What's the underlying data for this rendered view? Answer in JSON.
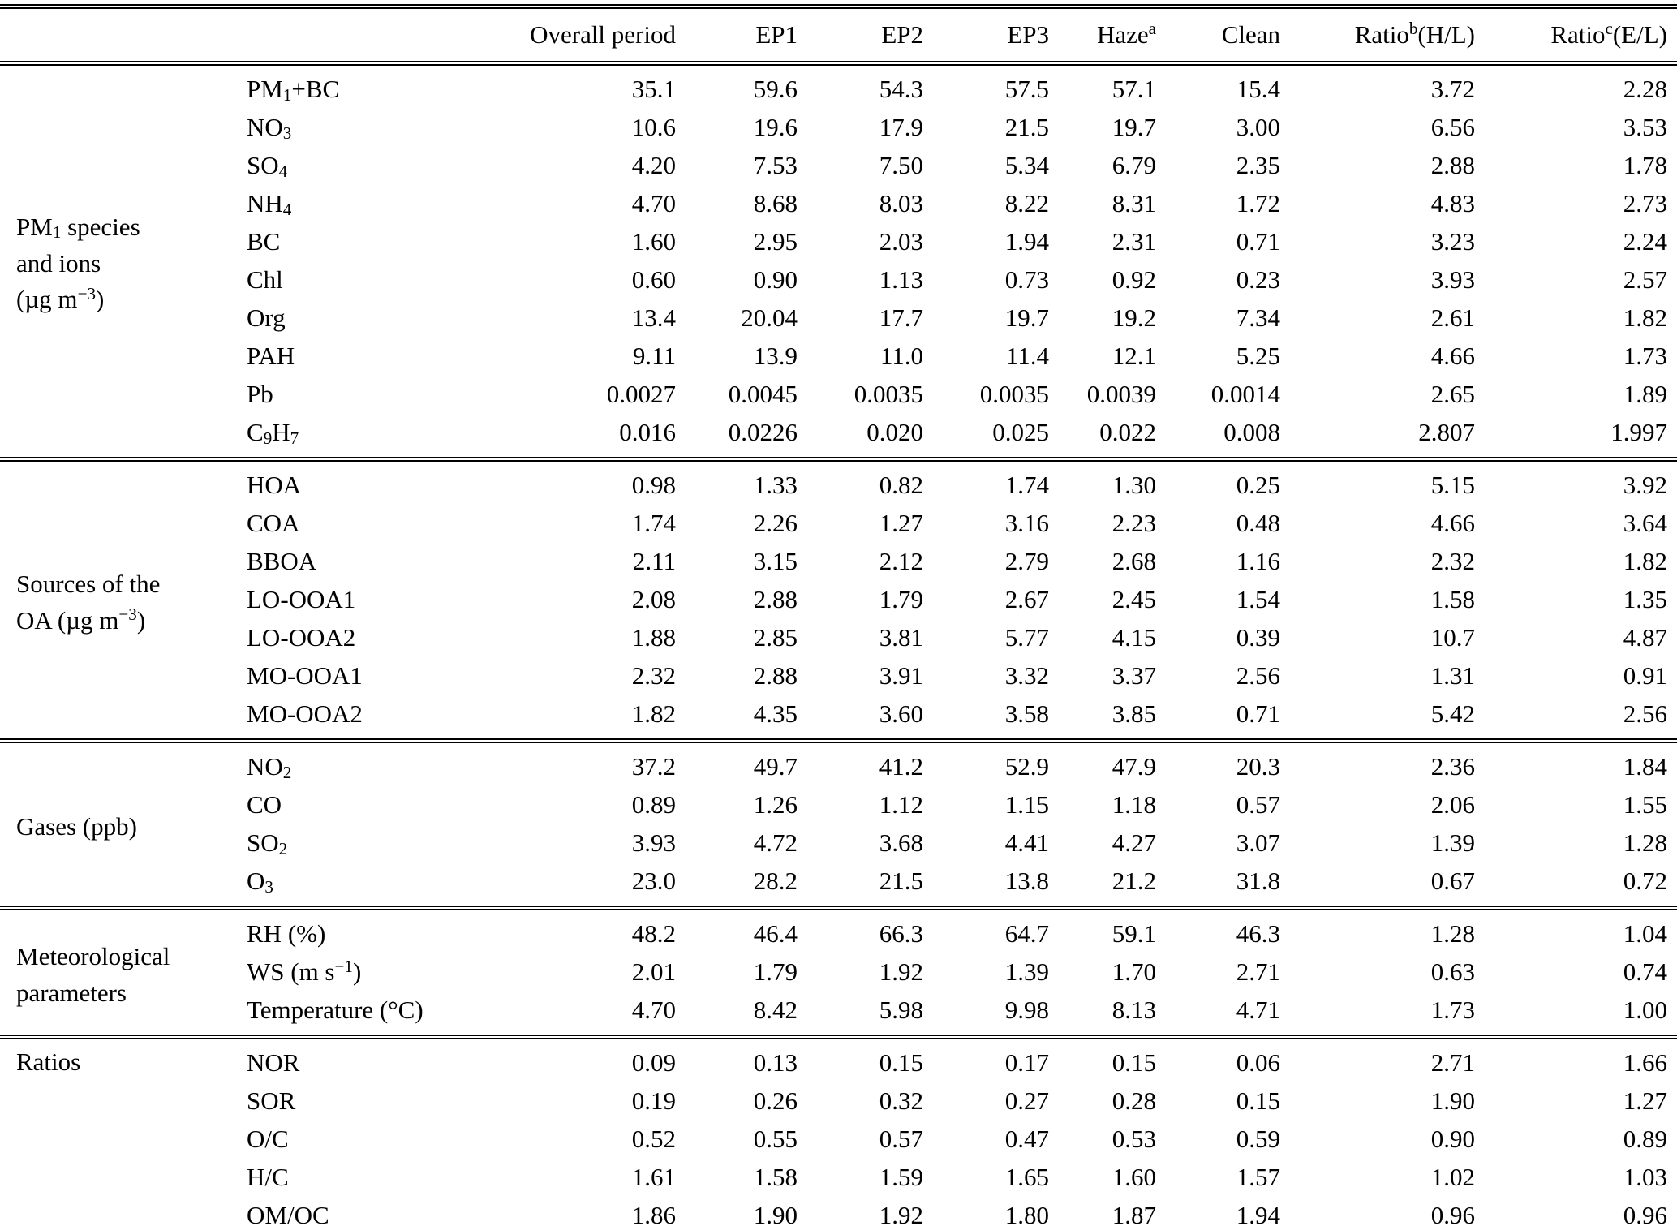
{
  "table": {
    "columns": [
      "",
      "",
      "Overall period",
      "EP1",
      "EP2",
      "EP3",
      "Haze^{a}",
      "Clean",
      "Ratio^{b}(H/L)",
      "Ratio^{c}(E/L)"
    ],
    "groups": [
      {
        "label": "PM_{1} species\nand ions\n(µg m^{−3})",
        "rows": [
          {
            "name": "PM_{1}+BC",
            "values": [
              "35.1",
              "59.6",
              "54.3",
              "57.5",
              "57.1",
              "15.4",
              "3.72",
              "2.28"
            ]
          },
          {
            "name": "NO_{3}",
            "values": [
              "10.6",
              "19.6",
              "17.9",
              "21.5",
              "19.7",
              "3.00",
              "6.56",
              "3.53"
            ]
          },
          {
            "name": "SO_{4}",
            "values": [
              "4.20",
              "7.53",
              "7.50",
              "5.34",
              "6.79",
              "2.35",
              "2.88",
              "1.78"
            ]
          },
          {
            "name": "NH_{4}",
            "values": [
              "4.70",
              "8.68",
              "8.03",
              "8.22",
              "8.31",
              "1.72",
              "4.83",
              "2.73"
            ]
          },
          {
            "name": "BC",
            "values": [
              "1.60",
              "2.95",
              "2.03",
              "1.94",
              "2.31",
              "0.71",
              "3.23",
              "2.24"
            ]
          },
          {
            "name": "Chl",
            "values": [
              "0.60",
              "0.90",
              "1.13",
              "0.73",
              "0.92",
              "0.23",
              "3.93",
              "2.57"
            ]
          },
          {
            "name": "Org",
            "values": [
              "13.4",
              "20.04",
              "17.7",
              "19.7",
              "19.2",
              "7.34",
              "2.61",
              "1.82"
            ]
          },
          {
            "name": "PAH",
            "values": [
              "9.11",
              "13.9",
              "11.0",
              "11.4",
              "12.1",
              "5.25",
              "4.66",
              "1.73"
            ]
          },
          {
            "name": "Pb",
            "values": [
              "0.0027",
              "0.0045",
              "0.0035",
              "0.0035",
              "0.0039",
              "0.0014",
              "2.65",
              "1.89"
            ]
          },
          {
            "name": "C_{9}H_{7}",
            "values": [
              "0.016",
              "0.0226",
              "0.020",
              "0.025",
              "0.022",
              "0.008",
              "2.807",
              "1.997"
            ]
          }
        ]
      },
      {
        "label": "Sources of the\nOA (µg m^{−3})",
        "rows": [
          {
            "name": "HOA",
            "values": [
              "0.98",
              "1.33",
              "0.82",
              "1.74",
              "1.30",
              "0.25",
              "5.15",
              "3.92"
            ]
          },
          {
            "name": "COA",
            "values": [
              "1.74",
              "2.26",
              "1.27",
              "3.16",
              "2.23",
              "0.48",
              "4.66",
              "3.64"
            ]
          },
          {
            "name": "BBOA",
            "values": [
              "2.11",
              "3.15",
              "2.12",
              "2.79",
              "2.68",
              "1.16",
              "2.32",
              "1.82"
            ]
          },
          {
            "name": "LO-OOA1",
            "values": [
              "2.08",
              "2.88",
              "1.79",
              "2.67",
              "2.45",
              "1.54",
              "1.58",
              "1.35"
            ]
          },
          {
            "name": "LO-OOA2",
            "values": [
              "1.88",
              "2.85",
              "3.81",
              "5.77",
              "4.15",
              "0.39",
              "10.7",
              "4.87"
            ]
          },
          {
            "name": "MO-OOA1",
            "values": [
              "2.32",
              "2.88",
              "3.91",
              "3.32",
              "3.37",
              "2.56",
              "1.31",
              "0.91"
            ]
          },
          {
            "name": "MO-OOA2",
            "values": [
              "1.82",
              "4.35",
              "3.60",
              "3.58",
              "3.85",
              "0.71",
              "5.42",
              "2.56"
            ]
          }
        ]
      },
      {
        "label": "Gases (ppb)",
        "rows": [
          {
            "name": "NO_{2}",
            "values": [
              "37.2",
              "49.7",
              "41.2",
              "52.9",
              "47.9",
              "20.3",
              "2.36",
              "1.84"
            ]
          },
          {
            "name": "CO",
            "values": [
              "0.89",
              "1.26",
              "1.12",
              "1.15",
              "1.18",
              "0.57",
              "2.06",
              "1.55"
            ]
          },
          {
            "name": "SO_{2}",
            "values": [
              "3.93",
              "4.72",
              "3.68",
              "4.41",
              "4.27",
              "3.07",
              "1.39",
              "1.28"
            ]
          },
          {
            "name": "O_{3}",
            "values": [
              "23.0",
              "28.2",
              "21.5",
              "13.8",
              "21.2",
              "31.8",
              "0.67",
              "0.72"
            ]
          }
        ]
      },
      {
        "label": "Meteorological\nparameters",
        "rows": [
          {
            "name": "RH (%)",
            "values": [
              "48.2",
              "46.4",
              "66.3",
              "64.7",
              "59.1",
              "46.3",
              "1.28",
              "1.04"
            ]
          },
          {
            "name": "WS (m s^{−1})",
            "values": [
              "2.01",
              "1.79",
              "1.92",
              "1.39",
              "1.70",
              "2.71",
              "0.63",
              "0.74"
            ]
          },
          {
            "name": "Temperature (°C)",
            "values": [
              "4.70",
              "8.42",
              "5.98",
              "9.98",
              "8.13",
              "4.71",
              "1.73",
              "1.00"
            ]
          }
        ]
      },
      {
        "label": "Ratios",
        "rows": [
          {
            "name": "NOR",
            "values": [
              "0.09",
              "0.13",
              "0.15",
              "0.17",
              "0.15",
              "0.06",
              "2.71",
              "1.66"
            ]
          },
          {
            "name": "SOR",
            "values": [
              "0.19",
              "0.26",
              "0.32",
              "0.27",
              "0.28",
              "0.15",
              "1.90",
              "1.27"
            ]
          },
          {
            "name": "O/C",
            "values": [
              "0.52",
              "0.55",
              "0.57",
              "0.47",
              "0.53",
              "0.59",
              "0.90",
              "0.89"
            ]
          },
          {
            "name": "H/C",
            "values": [
              "1.61",
              "1.58",
              "1.59",
              "1.65",
              "1.60",
              "1.57",
              "1.02",
              "1.03"
            ]
          },
          {
            "name": "OM/OC",
            "values": [
              "1.86",
              "1.90",
              "1.92",
              "1.80",
              "1.87",
              "1.94",
              "0.96",
              "0.96"
            ]
          }
        ]
      }
    ]
  }
}
